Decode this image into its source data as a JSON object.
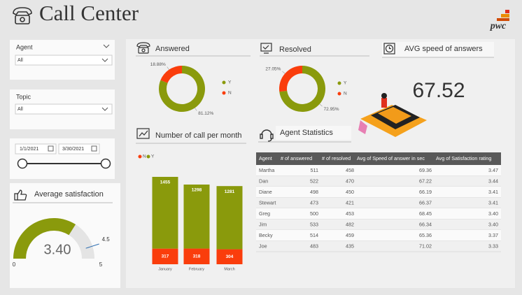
{
  "header": {
    "title": "Call Center",
    "logo": "pwc"
  },
  "filters": {
    "agent": {
      "label": "Agent",
      "value": "All"
    },
    "topic": {
      "label": "Topic",
      "value": "All"
    },
    "date": {
      "start": "1/1/2021",
      "end": "3/30/2021"
    }
  },
  "kpi": {
    "title": "AVG speed of answers",
    "value": "67.52"
  },
  "table": {
    "title": "Agent Statistics",
    "columns": [
      "Agent",
      "# of answered",
      "# of resolved",
      "Avg of Speed of answer in sec",
      "Avg of Satisfaction rating"
    ],
    "rows": [
      [
        "Martha",
        "511",
        "458",
        "69.36",
        "3.47"
      ],
      [
        "Dan",
        "522",
        "470",
        "67.22",
        "3.44"
      ],
      [
        "Diane",
        "498",
        "450",
        "66.19",
        "3.41"
      ],
      [
        "Stewart",
        "473",
        "421",
        "66.37",
        "3.41"
      ],
      [
        "Greg",
        "500",
        "453",
        "68.45",
        "3.40"
      ],
      [
        "Jim",
        "533",
        "482",
        "66.34",
        "3.40"
      ],
      [
        "Becky",
        "514",
        "459",
        "65.36",
        "3.37"
      ],
      [
        "Joe",
        "483",
        "435",
        "71.02",
        "3.33"
      ]
    ]
  },
  "chart_data": [
    {
      "type": "pie",
      "title": "Answered",
      "categories": [
        "Y",
        "N"
      ],
      "values": [
        81.12,
        18.88
      ],
      "value_labels": [
        "81.12%",
        "18.88%"
      ],
      "colors": [
        "#8a9a0c",
        "#fa3d0c"
      ]
    },
    {
      "type": "pie",
      "title": "Resolved",
      "categories": [
        "Y",
        "N"
      ],
      "values": [
        72.95,
        27.05
      ],
      "value_labels": [
        "72.95%",
        "27.05%"
      ],
      "colors": [
        "#8a9a0c",
        "#fa3d0c"
      ]
    },
    {
      "type": "bar",
      "title": "Number of call per month",
      "stacked": true,
      "categories": [
        "January",
        "February",
        "March"
      ],
      "series": [
        {
          "name": "N",
          "color": "#fa3d0c",
          "values": [
            317,
            318,
            304
          ]
        },
        {
          "name": "Y",
          "color": "#8a9a0c",
          "values": [
            1455,
            1298,
            1281
          ]
        }
      ]
    },
    {
      "type": "gauge",
      "title": "Average satisfaction",
      "values": [
        3.4
      ],
      "value_labels": [
        "3.40"
      ],
      "ylim": [
        0,
        5
      ],
      "yticks": [
        0,
        5
      ],
      "target": 4.5,
      "color": "#8a9a0c"
    }
  ]
}
